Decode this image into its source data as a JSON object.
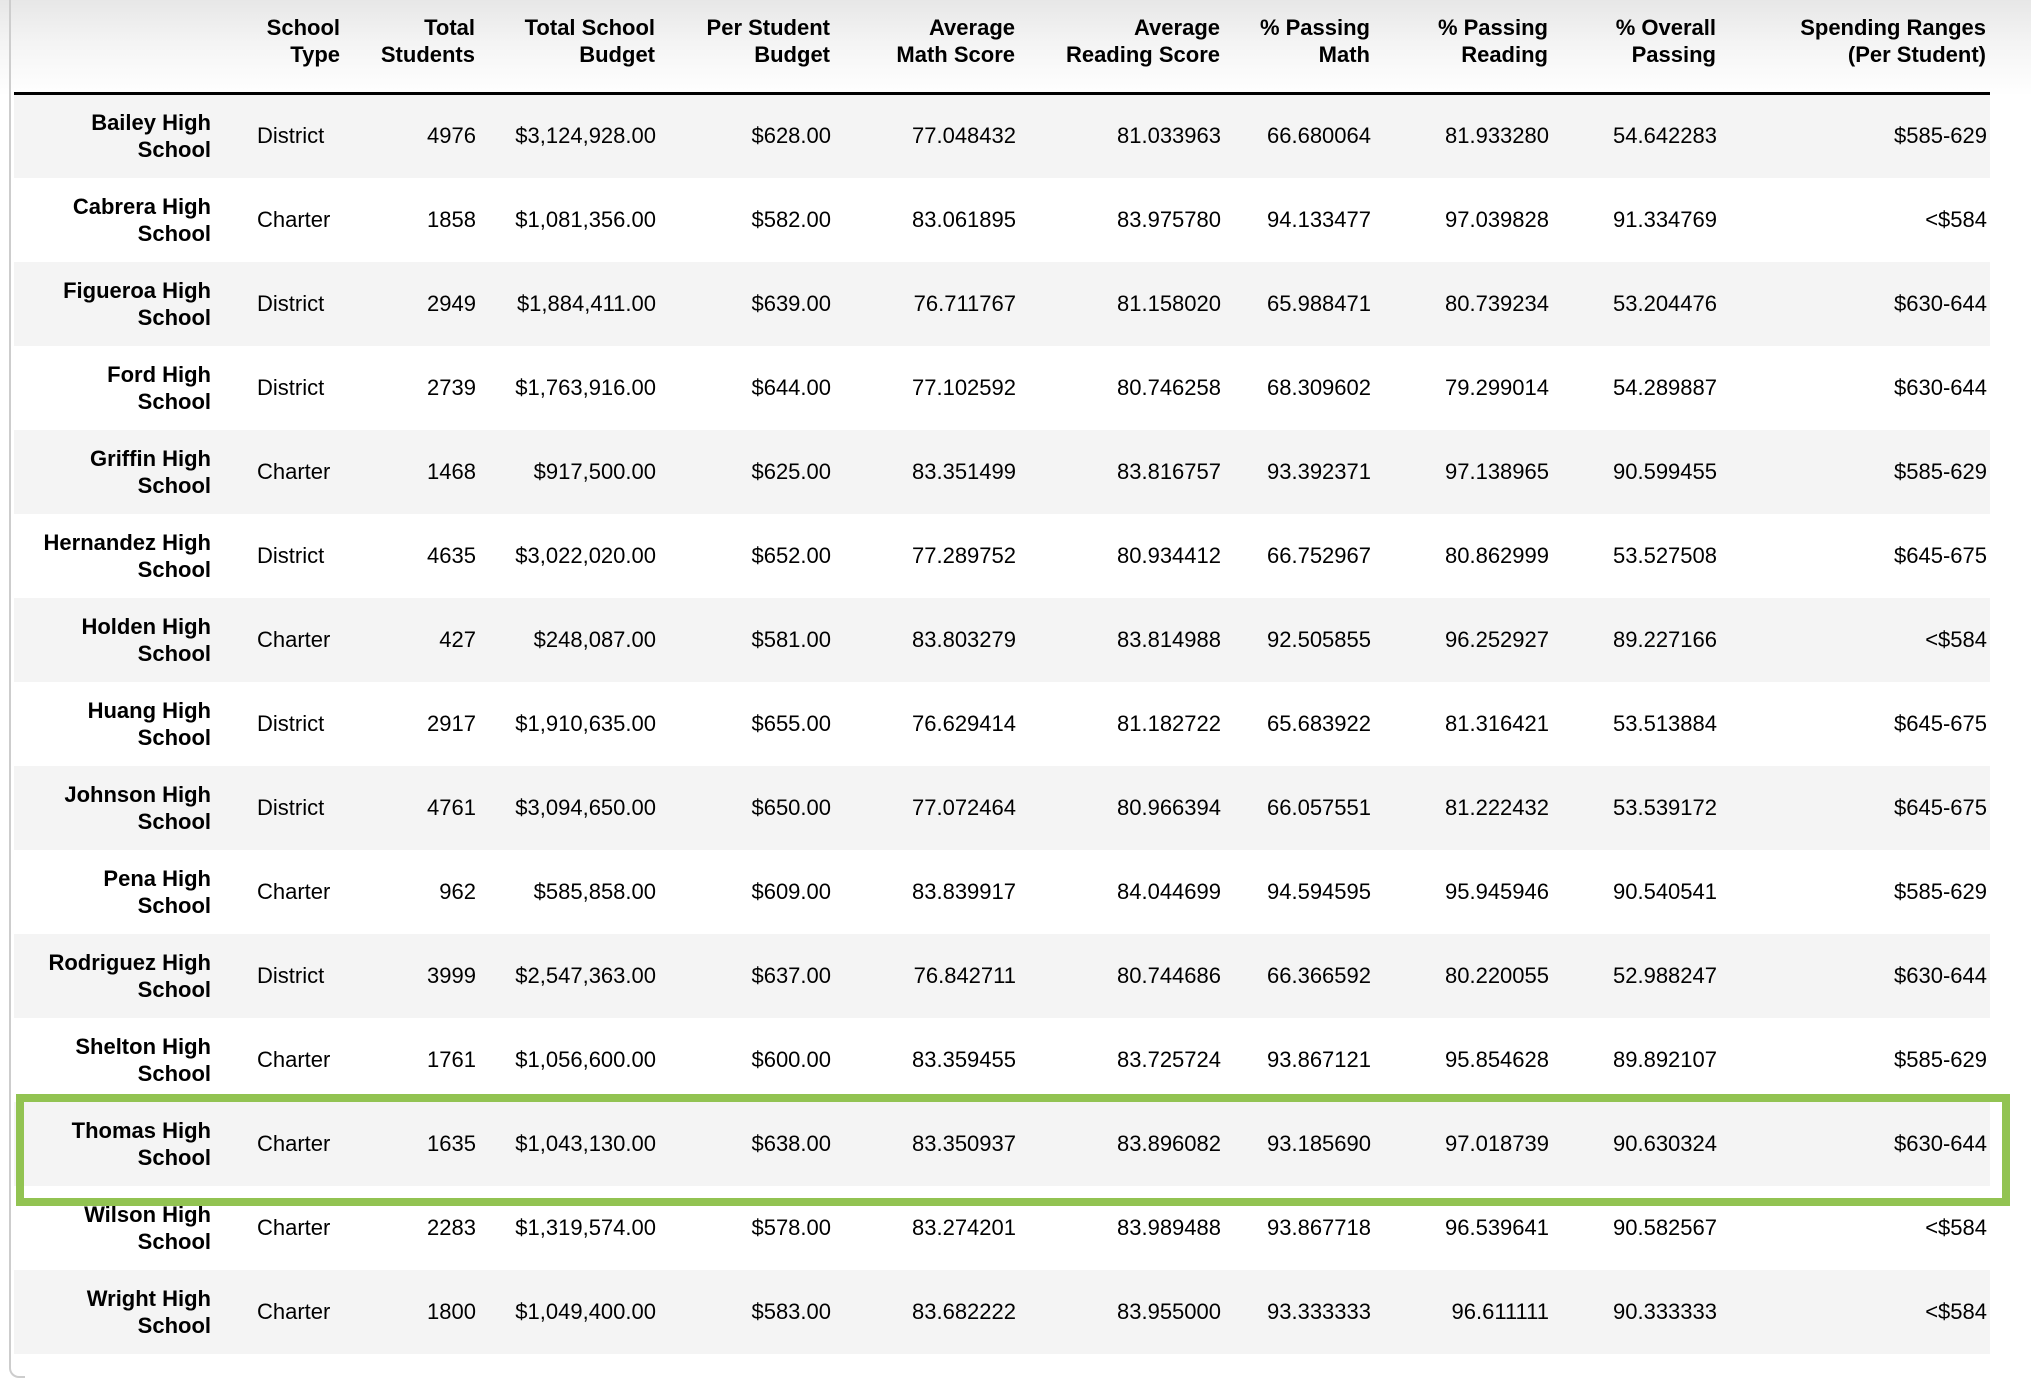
{
  "table": {
    "columns": [
      {
        "key": "name",
        "label": ""
      },
      {
        "key": "type",
        "label": "School\nType"
      },
      {
        "key": "students",
        "label": "Total\nStudents"
      },
      {
        "key": "total_budget",
        "label": "Total School\nBudget"
      },
      {
        "key": "per_student_budget",
        "label": "Per Student\nBudget"
      },
      {
        "key": "avg_math",
        "label": "Average\nMath Score"
      },
      {
        "key": "avg_reading",
        "label": "Average\nReading Score"
      },
      {
        "key": "pct_math",
        "label": "% Passing\nMath"
      },
      {
        "key": "pct_reading",
        "label": "% Passing\nReading"
      },
      {
        "key": "pct_overall",
        "label": "% Overall\nPassing"
      },
      {
        "key": "spending_range",
        "label": "Spending Ranges\n(Per Student)"
      }
    ],
    "rows": [
      {
        "name": "Bailey High\nSchool",
        "type": "District",
        "students": "4976",
        "total_budget": "$3,124,928.00",
        "per_student_budget": "$628.00",
        "avg_math": "77.048432",
        "avg_reading": "81.033963",
        "pct_math": "66.680064",
        "pct_reading": "81.933280",
        "pct_overall": "54.642283",
        "spending_range": "$585-629",
        "highlighted": false
      },
      {
        "name": "Cabrera High\nSchool",
        "type": "Charter",
        "students": "1858",
        "total_budget": "$1,081,356.00",
        "per_student_budget": "$582.00",
        "avg_math": "83.061895",
        "avg_reading": "83.975780",
        "pct_math": "94.133477",
        "pct_reading": "97.039828",
        "pct_overall": "91.334769",
        "spending_range": "<$584",
        "highlighted": false
      },
      {
        "name": "Figueroa High\nSchool",
        "type": "District",
        "students": "2949",
        "total_budget": "$1,884,411.00",
        "per_student_budget": "$639.00",
        "avg_math": "76.711767",
        "avg_reading": "81.158020",
        "pct_math": "65.988471",
        "pct_reading": "80.739234",
        "pct_overall": "53.204476",
        "spending_range": "$630-644",
        "highlighted": false
      },
      {
        "name": "Ford High\nSchool",
        "type": "District",
        "students": "2739",
        "total_budget": "$1,763,916.00",
        "per_student_budget": "$644.00",
        "avg_math": "77.102592",
        "avg_reading": "80.746258",
        "pct_math": "68.309602",
        "pct_reading": "79.299014",
        "pct_overall": "54.289887",
        "spending_range": "$630-644",
        "highlighted": false
      },
      {
        "name": "Griffin High\nSchool",
        "type": "Charter",
        "students": "1468",
        "total_budget": "$917,500.00",
        "per_student_budget": "$625.00",
        "avg_math": "83.351499",
        "avg_reading": "83.816757",
        "pct_math": "93.392371",
        "pct_reading": "97.138965",
        "pct_overall": "90.599455",
        "spending_range": "$585-629",
        "highlighted": false
      },
      {
        "name": "Hernandez High\nSchool",
        "type": "District",
        "students": "4635",
        "total_budget": "$3,022,020.00",
        "per_student_budget": "$652.00",
        "avg_math": "77.289752",
        "avg_reading": "80.934412",
        "pct_math": "66.752967",
        "pct_reading": "80.862999",
        "pct_overall": "53.527508",
        "spending_range": "$645-675",
        "highlighted": false
      },
      {
        "name": "Holden High\nSchool",
        "type": "Charter",
        "students": "427",
        "total_budget": "$248,087.00",
        "per_student_budget": "$581.00",
        "avg_math": "83.803279",
        "avg_reading": "83.814988",
        "pct_math": "92.505855",
        "pct_reading": "96.252927",
        "pct_overall": "89.227166",
        "spending_range": "<$584",
        "highlighted": false
      },
      {
        "name": "Huang High\nSchool",
        "type": "District",
        "students": "2917",
        "total_budget": "$1,910,635.00",
        "per_student_budget": "$655.00",
        "avg_math": "76.629414",
        "avg_reading": "81.182722",
        "pct_math": "65.683922",
        "pct_reading": "81.316421",
        "pct_overall": "53.513884",
        "spending_range": "$645-675",
        "highlighted": false
      },
      {
        "name": "Johnson High\nSchool",
        "type": "District",
        "students": "4761",
        "total_budget": "$3,094,650.00",
        "per_student_budget": "$650.00",
        "avg_math": "77.072464",
        "avg_reading": "80.966394",
        "pct_math": "66.057551",
        "pct_reading": "81.222432",
        "pct_overall": "53.539172",
        "spending_range": "$645-675",
        "highlighted": false
      },
      {
        "name": "Pena High\nSchool",
        "type": "Charter",
        "students": "962",
        "total_budget": "$585,858.00",
        "per_student_budget": "$609.00",
        "avg_math": "83.839917",
        "avg_reading": "84.044699",
        "pct_math": "94.594595",
        "pct_reading": "95.945946",
        "pct_overall": "90.540541",
        "spending_range": "$585-629",
        "highlighted": false
      },
      {
        "name": "Rodriguez High\nSchool",
        "type": "District",
        "students": "3999",
        "total_budget": "$2,547,363.00",
        "per_student_budget": "$637.00",
        "avg_math": "76.842711",
        "avg_reading": "80.744686",
        "pct_math": "66.366592",
        "pct_reading": "80.220055",
        "pct_overall": "52.988247",
        "spending_range": "$630-644",
        "highlighted": false
      },
      {
        "name": "Shelton High\nSchool",
        "type": "Charter",
        "students": "1761",
        "total_budget": "$1,056,600.00",
        "per_student_budget": "$600.00",
        "avg_math": "83.359455",
        "avg_reading": "83.725724",
        "pct_math": "93.867121",
        "pct_reading": "95.854628",
        "pct_overall": "89.892107",
        "spending_range": "$585-629",
        "highlighted": false
      },
      {
        "name": "Thomas High\nSchool",
        "type": "Charter",
        "students": "1635",
        "total_budget": "$1,043,130.00",
        "per_student_budget": "$638.00",
        "avg_math": "83.350937",
        "avg_reading": "83.896082",
        "pct_math": "93.185690",
        "pct_reading": "97.018739",
        "pct_overall": "90.630324",
        "spending_range": "$630-644",
        "highlighted": true
      },
      {
        "name": "Wilson High\nSchool",
        "type": "Charter",
        "students": "2283",
        "total_budget": "$1,319,574.00",
        "per_student_budget": "$578.00",
        "avg_math": "83.274201",
        "avg_reading": "83.989488",
        "pct_math": "93.867718",
        "pct_reading": "96.539641",
        "pct_overall": "90.582567",
        "spending_range": "<$584",
        "highlighted": false
      },
      {
        "name": "Wright High\nSchool",
        "type": "Charter",
        "students": "1800",
        "total_budget": "$1,049,400.00",
        "per_student_budget": "$583.00",
        "avg_math": "83.682222",
        "avg_reading": "83.955000",
        "pct_math": "93.333333",
        "pct_reading": "96.611111",
        "pct_overall": "90.333333",
        "spending_range": "<$584",
        "highlighted": false
      }
    ],
    "highlight": {
      "row": "Thomas High School",
      "color": "#92c352"
    },
    "stripe_color": "#f4f4f4"
  }
}
